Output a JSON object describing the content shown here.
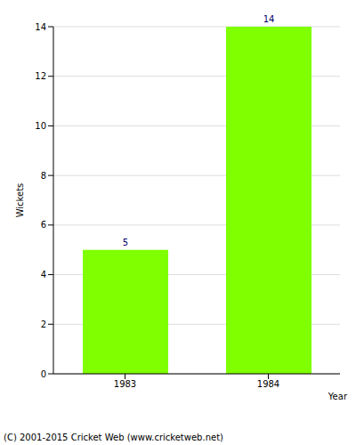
{
  "chart_data": {
    "type": "bar",
    "categories": [
      "1983",
      "1984"
    ],
    "values": [
      5,
      14
    ],
    "color": "#7fff00",
    "xlabel": "Year",
    "ylabel": "Wickets",
    "ylim": [
      0,
      14
    ],
    "yticks": [
      0,
      2,
      4,
      6,
      8,
      10,
      12,
      14
    ],
    "grid": true,
    "data_labels": true,
    "annotations": [
      "(C) 2001-2015 Cricket Web (www.cricketweb.net)"
    ]
  }
}
